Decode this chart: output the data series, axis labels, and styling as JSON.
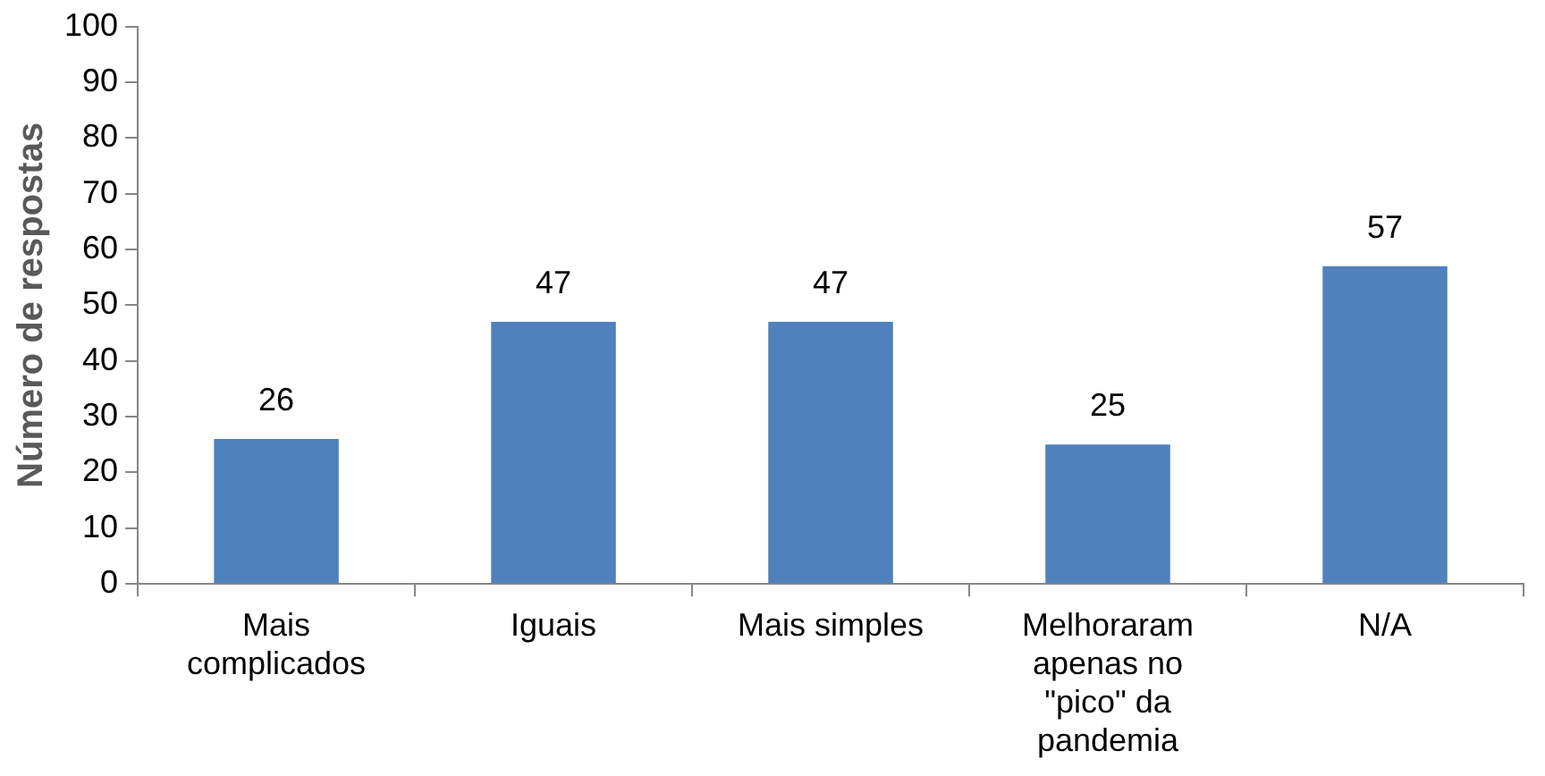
{
  "chart_data": {
    "type": "bar",
    "ylabel": "Número de respostas",
    "categories": [
      "Mais complicados",
      "Iguais",
      "Mais simples",
      "Melhoraram apenas no \"pico\" da pandemia",
      "N/A"
    ],
    "values": [
      26,
      47,
      47,
      25,
      57
    ],
    "color": "#4f81bd",
    "ylim": [
      0,
      100
    ],
    "yticks": [
      0,
      10,
      20,
      30,
      40,
      50,
      60,
      70,
      80,
      90,
      100
    ],
    "grid": false,
    "legend": false,
    "data_labels": true
  }
}
